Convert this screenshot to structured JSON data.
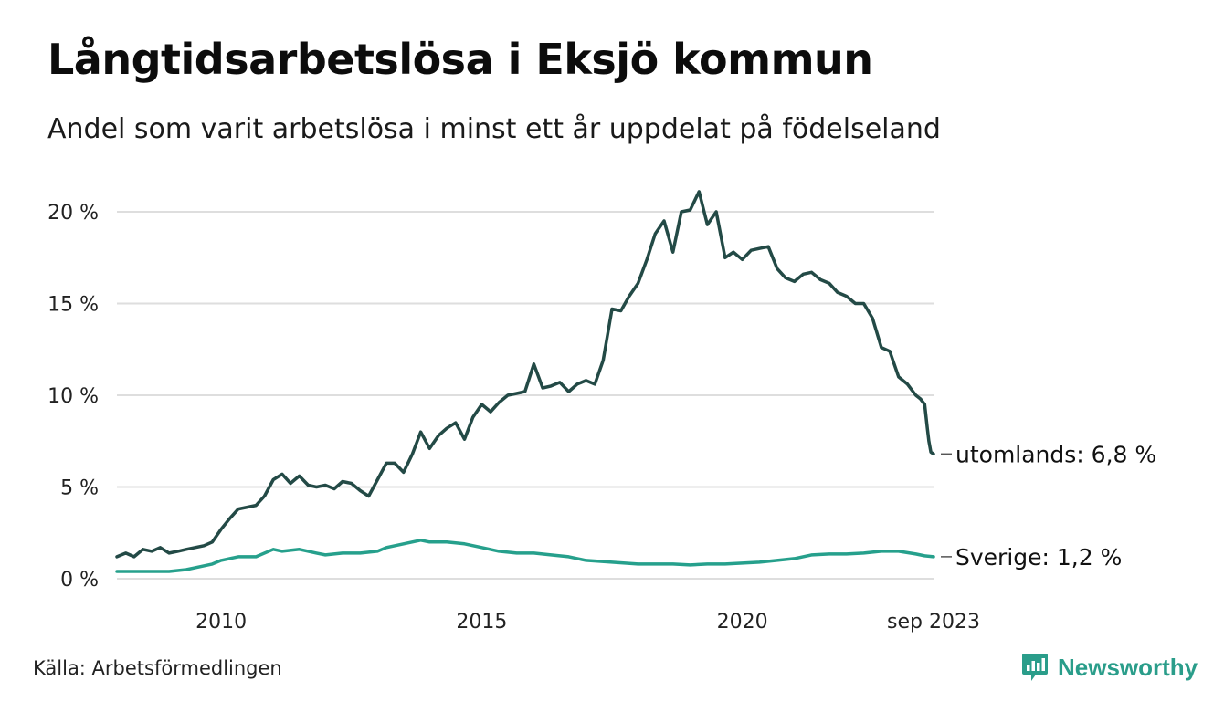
{
  "header": {
    "title": "Långtidsarbetslösa i Eksjö kommun",
    "subtitle": "Andel som varit arbetslösa i minst ett år uppdelat på födelseland"
  },
  "footer": {
    "source": "Källa: Arbetsförmedlingen",
    "brand": "Newsworthy",
    "brand_color": "#2a9d8a"
  },
  "chart_data": {
    "type": "line",
    "title": "Långtidsarbetslösa i Eksjö kommun",
    "subtitle": "Andel som varit arbetslösa i minst ett år uppdelat på födelseland",
    "xlabel": "",
    "ylabel": "",
    "x_range": [
      2008.0,
      2023.67
    ],
    "ylim": [
      0,
      21
    ],
    "grid": true,
    "y_ticks": [
      {
        "value": 0,
        "label": "0 %"
      },
      {
        "value": 5,
        "label": "5 %"
      },
      {
        "value": 10,
        "label": "10 %"
      },
      {
        "value": 15,
        "label": "15 %"
      },
      {
        "value": 20,
        "label": "20 %"
      }
    ],
    "x_ticks": [
      {
        "value": 2010,
        "label": "2010"
      },
      {
        "value": 2015,
        "label": "2015"
      },
      {
        "value": 2020,
        "label": "2020"
      },
      {
        "value": 2023.67,
        "label": "sep 2023"
      }
    ],
    "series": [
      {
        "name": "utomlands",
        "end_label": "utomlands: 6,8 %",
        "color": "#234a46",
        "points": [
          [
            2008.0,
            1.2
          ],
          [
            2008.17,
            1.4
          ],
          [
            2008.33,
            1.2
          ],
          [
            2008.5,
            1.6
          ],
          [
            2008.67,
            1.5
          ],
          [
            2008.83,
            1.7
          ],
          [
            2009.0,
            1.4
          ],
          [
            2009.17,
            1.5
          ],
          [
            2009.33,
            1.6
          ],
          [
            2009.5,
            1.7
          ],
          [
            2009.67,
            1.8
          ],
          [
            2009.83,
            2.0
          ],
          [
            2010.0,
            2.7
          ],
          [
            2010.17,
            3.3
          ],
          [
            2010.33,
            3.8
          ],
          [
            2010.5,
            3.9
          ],
          [
            2010.67,
            4.0
          ],
          [
            2010.83,
            4.5
          ],
          [
            2011.0,
            5.4
          ],
          [
            2011.17,
            5.7
          ],
          [
            2011.33,
            5.2
          ],
          [
            2011.5,
            5.6
          ],
          [
            2011.67,
            5.1
          ],
          [
            2011.83,
            5.0
          ],
          [
            2012.0,
            5.1
          ],
          [
            2012.17,
            4.9
          ],
          [
            2012.33,
            5.3
          ],
          [
            2012.5,
            5.2
          ],
          [
            2012.67,
            4.8
          ],
          [
            2012.83,
            4.5
          ],
          [
            2013.0,
            5.4
          ],
          [
            2013.17,
            6.3
          ],
          [
            2013.33,
            6.3
          ],
          [
            2013.5,
            5.8
          ],
          [
            2013.67,
            6.8
          ],
          [
            2013.83,
            8.0
          ],
          [
            2014.0,
            7.1
          ],
          [
            2014.17,
            7.8
          ],
          [
            2014.33,
            8.2
          ],
          [
            2014.5,
            8.5
          ],
          [
            2014.67,
            7.6
          ],
          [
            2014.83,
            8.8
          ],
          [
            2015.0,
            9.5
          ],
          [
            2015.17,
            9.1
          ],
          [
            2015.33,
            9.6
          ],
          [
            2015.5,
            10.0
          ],
          [
            2015.67,
            10.1
          ],
          [
            2015.83,
            10.2
          ],
          [
            2016.0,
            11.7
          ],
          [
            2016.17,
            10.4
          ],
          [
            2016.33,
            10.5
          ],
          [
            2016.5,
            10.7
          ],
          [
            2016.67,
            10.2
          ],
          [
            2016.83,
            10.6
          ],
          [
            2017.0,
            10.8
          ],
          [
            2017.17,
            10.6
          ],
          [
            2017.33,
            11.9
          ],
          [
            2017.5,
            14.7
          ],
          [
            2017.67,
            14.6
          ],
          [
            2017.83,
            15.4
          ],
          [
            2018.0,
            16.1
          ],
          [
            2018.17,
            17.4
          ],
          [
            2018.33,
            18.8
          ],
          [
            2018.5,
            19.5
          ],
          [
            2018.67,
            17.8
          ],
          [
            2018.83,
            20.0
          ],
          [
            2019.0,
            20.1
          ],
          [
            2019.17,
            21.1
          ],
          [
            2019.33,
            19.3
          ],
          [
            2019.5,
            20.0
          ],
          [
            2019.67,
            17.5
          ],
          [
            2019.83,
            17.8
          ],
          [
            2020.0,
            17.4
          ],
          [
            2020.17,
            17.9
          ],
          [
            2020.33,
            18.0
          ],
          [
            2020.5,
            18.1
          ],
          [
            2020.67,
            16.9
          ],
          [
            2020.83,
            16.4
          ],
          [
            2021.0,
            16.2
          ],
          [
            2021.17,
            16.6
          ],
          [
            2021.33,
            16.7
          ],
          [
            2021.5,
            16.3
          ],
          [
            2021.67,
            16.1
          ],
          [
            2021.83,
            15.6
          ],
          [
            2022.0,
            15.4
          ],
          [
            2022.17,
            15.0
          ],
          [
            2022.33,
            15.0
          ],
          [
            2022.5,
            14.2
          ],
          [
            2022.67,
            12.6
          ],
          [
            2022.83,
            12.4
          ],
          [
            2023.0,
            11.0
          ],
          [
            2023.17,
            10.6
          ],
          [
            2023.33,
            10.0
          ],
          [
            2023.42,
            9.8
          ],
          [
            2023.5,
            9.5
          ],
          [
            2023.55,
            8.2
          ],
          [
            2023.58,
            7.5
          ],
          [
            2023.62,
            6.9
          ],
          [
            2023.67,
            6.8
          ]
        ]
      },
      {
        "name": "Sverige",
        "end_label": "Sverige: 1,2 %",
        "color": "#26a08c",
        "points": [
          [
            2008.0,
            0.4
          ],
          [
            2008.5,
            0.4
          ],
          [
            2009.0,
            0.4
          ],
          [
            2009.33,
            0.5
          ],
          [
            2009.5,
            0.6
          ],
          [
            2009.83,
            0.8
          ],
          [
            2010.0,
            1.0
          ],
          [
            2010.33,
            1.2
          ],
          [
            2010.67,
            1.2
          ],
          [
            2011.0,
            1.6
          ],
          [
            2011.17,
            1.5
          ],
          [
            2011.5,
            1.6
          ],
          [
            2011.83,
            1.4
          ],
          [
            2012.0,
            1.3
          ],
          [
            2012.33,
            1.4
          ],
          [
            2012.67,
            1.4
          ],
          [
            2013.0,
            1.5
          ],
          [
            2013.17,
            1.7
          ],
          [
            2013.5,
            1.9
          ],
          [
            2013.83,
            2.1
          ],
          [
            2014.0,
            2.0
          ],
          [
            2014.33,
            2.0
          ],
          [
            2014.67,
            1.9
          ],
          [
            2015.0,
            1.7
          ],
          [
            2015.33,
            1.5
          ],
          [
            2015.67,
            1.4
          ],
          [
            2016.0,
            1.4
          ],
          [
            2016.33,
            1.3
          ],
          [
            2016.67,
            1.2
          ],
          [
            2017.0,
            1.0
          ],
          [
            2017.5,
            0.9
          ],
          [
            2018.0,
            0.8
          ],
          [
            2018.33,
            0.8
          ],
          [
            2018.67,
            0.8
          ],
          [
            2019.0,
            0.75
          ],
          [
            2019.33,
            0.8
          ],
          [
            2019.67,
            0.8
          ],
          [
            2020.0,
            0.85
          ],
          [
            2020.33,
            0.9
          ],
          [
            2020.67,
            1.0
          ],
          [
            2021.0,
            1.1
          ],
          [
            2021.33,
            1.3
          ],
          [
            2021.67,
            1.35
          ],
          [
            2022.0,
            1.35
          ],
          [
            2022.33,
            1.4
          ],
          [
            2022.67,
            1.5
          ],
          [
            2023.0,
            1.5
          ],
          [
            2023.33,
            1.35
          ],
          [
            2023.5,
            1.25
          ],
          [
            2023.67,
            1.2
          ]
        ]
      }
    ]
  }
}
